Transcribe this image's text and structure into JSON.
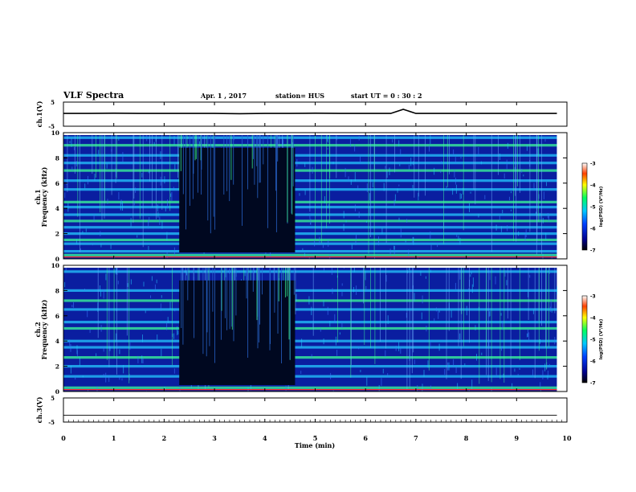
{
  "header": {
    "title": "VLF Spectra",
    "date": "Apr. 1 , 2017",
    "station": "station= HUS",
    "start_ut": "start UT =  0 : 30 : 2"
  },
  "chart_data": [
    {
      "type": "line",
      "panel": "ch1-waveform",
      "ylabel": "ch.1(V)",
      "yticks": [
        "5",
        "-5"
      ],
      "ylim": [
        -5,
        5
      ],
      "x": [
        0,
        0.5,
        1,
        1.5,
        2,
        2.5,
        3,
        3.5,
        4,
        4.5,
        5,
        5.5,
        6,
        6.5,
        6.75,
        7,
        7.5,
        8,
        8.5,
        9,
        9.5,
        9.8
      ],
      "y": [
        0.3,
        0.3,
        0.4,
        0.3,
        0.3,
        0.3,
        0.3,
        0.2,
        0.3,
        0.3,
        0.4,
        0.3,
        0.3,
        0.3,
        2.0,
        0.3,
        0.3,
        0.3,
        0.3,
        0.3,
        0.3,
        0.3
      ]
    },
    {
      "type": "heatmap",
      "panel": "ch1-spectrogram",
      "ylabel_channel": "ch.1",
      "ylabel": "Frequency (kHz)",
      "ylim": [
        0,
        10
      ],
      "yticks": [
        "0",
        "2",
        "4",
        "6",
        "8",
        "10"
      ],
      "xlim": [
        0,
        10
      ],
      "quiet_interval_min": [
        2.3,
        4.6
      ],
      "active_interval_end_min": 9.8,
      "bands_khz": [
        0.3,
        0.6,
        1.2,
        1.5,
        2.0,
        2.5,
        3.0,
        3.5,
        4.1,
        4.5,
        5.5,
        6.2,
        7.0,
        7.6,
        8.2,
        9.0,
        9.6
      ],
      "colorbar": {
        "label": "log(PSD) (V²/Hz)",
        "ticks": [
          "-3",
          "-4",
          "-5",
          "-6",
          "-7"
        ],
        "range": [
          -7,
          -3
        ]
      }
    },
    {
      "type": "heatmap",
      "panel": "ch2-spectrogram",
      "ylabel_channel": "ch.2",
      "ylabel": "Frequency (kHz)",
      "ylim": [
        0,
        10
      ],
      "yticks": [
        "0",
        "2",
        "4",
        "6",
        "8",
        "10"
      ],
      "xlim": [
        0,
        10
      ],
      "quiet_interval_min": [
        2.3,
        4.6
      ],
      "active_interval_end_min": 9.8,
      "bands_khz": [
        0.3,
        1.2,
        2.0,
        2.7,
        3.5,
        4.0,
        5.0,
        5.5,
        6.5,
        7.2,
        8.0,
        9.5
      ],
      "colorbar": {
        "label": "log(PSD) (V²/Hz)",
        "ticks": [
          "-3",
          "-4",
          "-5",
          "-6",
          "-7"
        ],
        "range": [
          -7,
          -3
        ]
      }
    },
    {
      "type": "line",
      "panel": "ch3-waveform",
      "ylabel": "ch.3(V)",
      "yticks": [
        "5",
        "-5"
      ],
      "ylim": [
        -5,
        5
      ],
      "x": [
        0,
        9.8
      ],
      "y": [
        -2.2,
        -2.2
      ]
    }
  ],
  "x_axis": {
    "label": "Time (min)",
    "ticks": [
      "0",
      "1",
      "2",
      "3",
      "4",
      "5",
      "6",
      "7",
      "8",
      "9",
      "10"
    ],
    "xlim": [
      0,
      10
    ]
  },
  "colors": {
    "background_dark": "#000820",
    "spectrogram_base": "#0a1ea0",
    "band_cyan": "#25c8ff",
    "band_green": "#3cff9a",
    "band_red": "#ff2a2a"
  }
}
